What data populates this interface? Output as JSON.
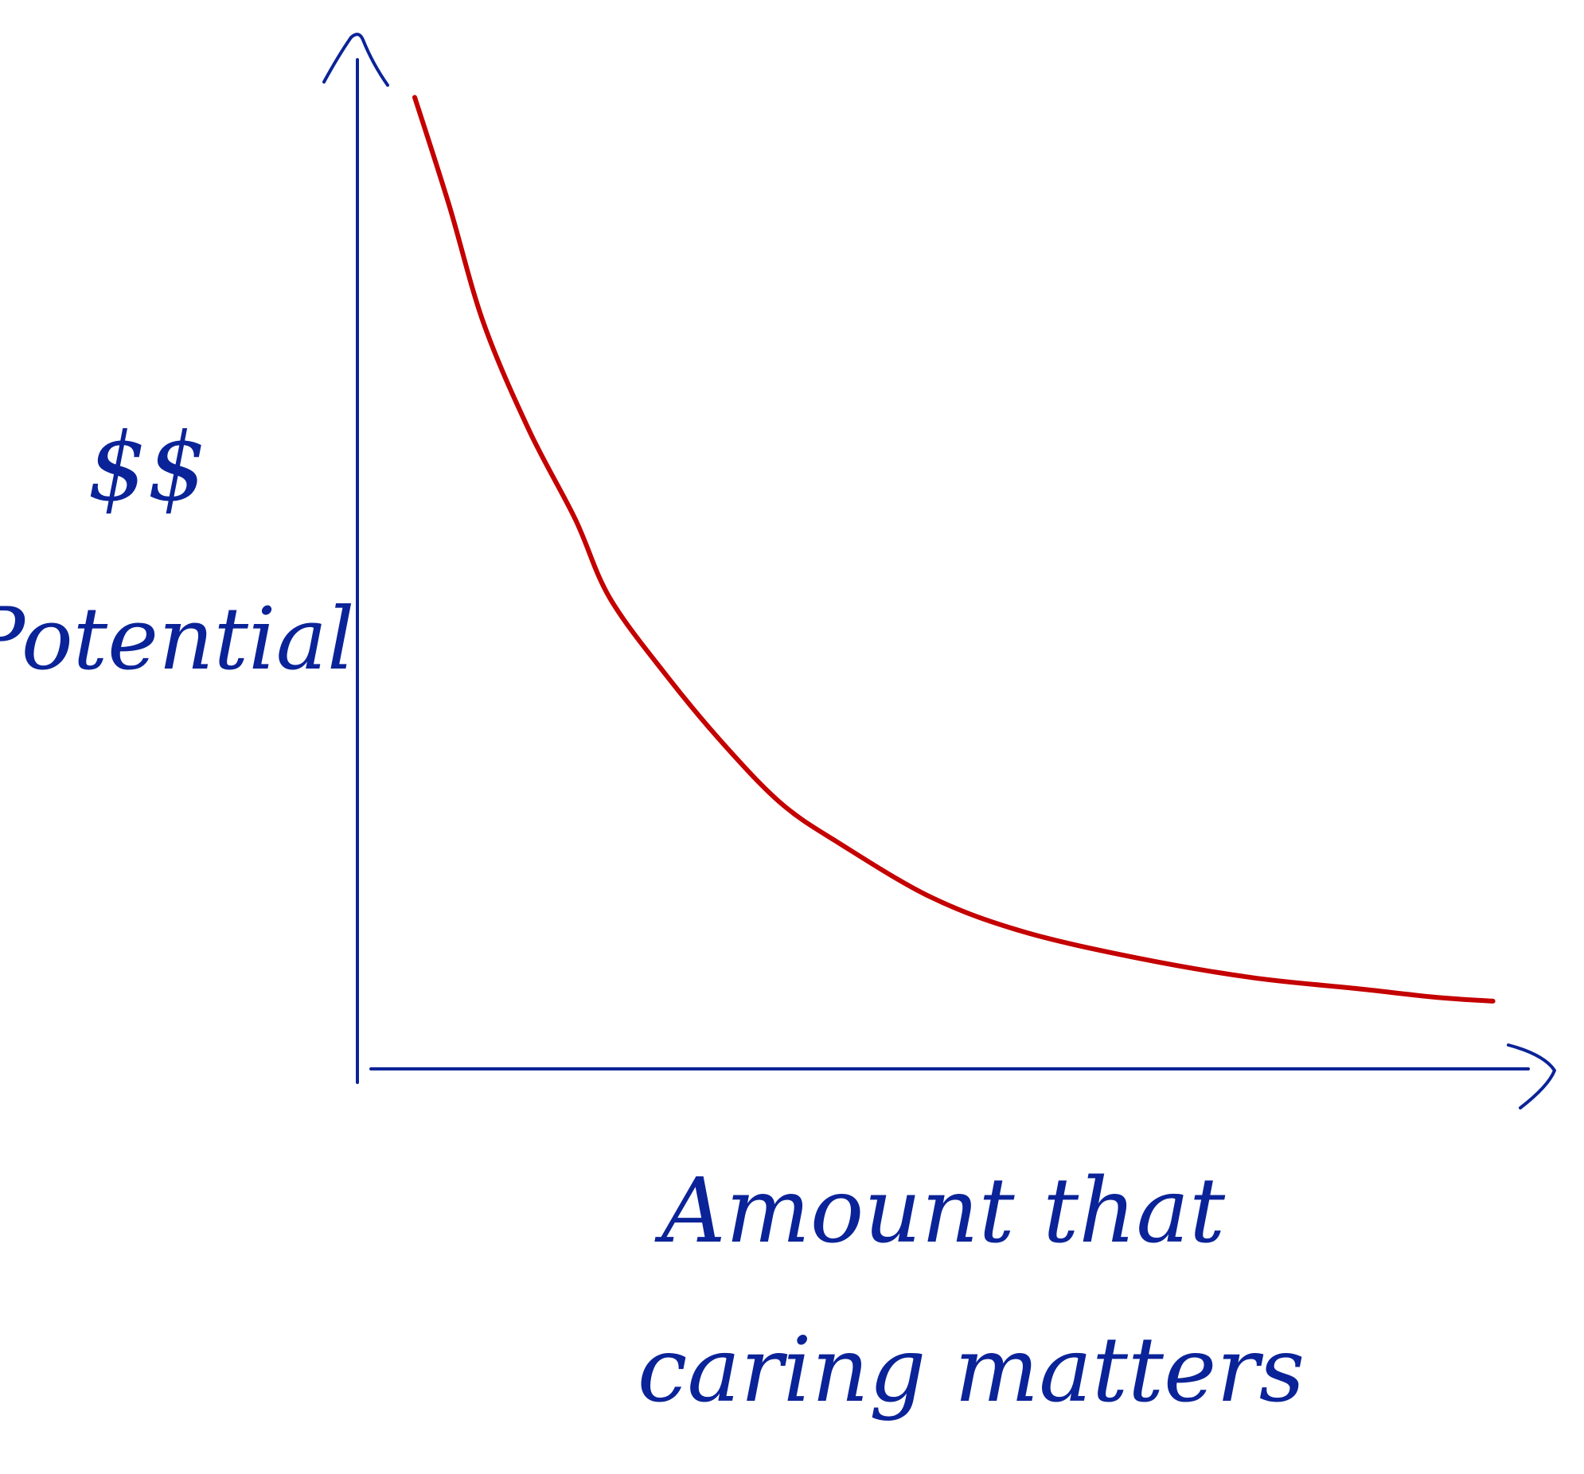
{
  "colors": {
    "axis": "#0b2398",
    "curve": "#c40000",
    "background": "#ffffff"
  },
  "chart_data": {
    "type": "line",
    "title": "",
    "xlabel": "Amount that caring matters",
    "ylabel": "$$ Potential",
    "xlim": [
      0,
      100
    ],
    "ylim": [
      0,
      100
    ],
    "x_ticks": [],
    "y_ticks": [],
    "grid": false,
    "legend": "none",
    "series": [
      {
        "x": [
          5,
          8,
          11,
          15,
          19,
          22,
          27,
          32,
          37,
          42,
          50,
          58,
          68,
          78,
          87,
          94,
          99
        ],
        "y": [
          99,
          88,
          76,
          65,
          56,
          48,
          40,
          33,
          27,
          23,
          17.5,
          14,
          11.3,
          9.3,
          8.2,
          7.3,
          6.9
        ]
      }
    ]
  }
}
